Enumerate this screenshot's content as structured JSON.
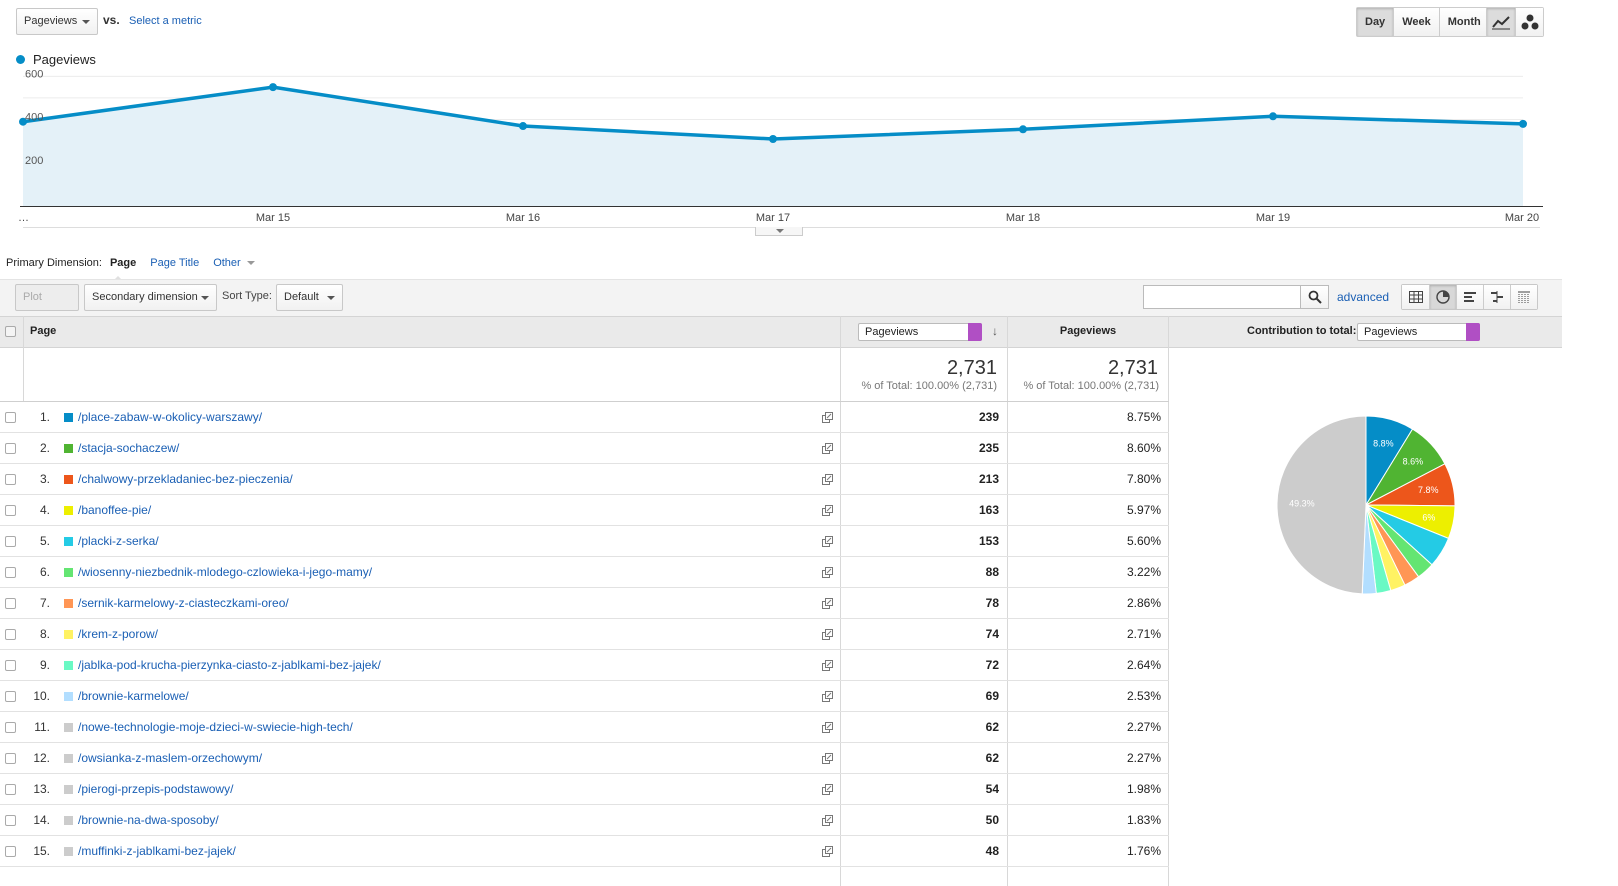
{
  "top": {
    "metric": "Pageviews",
    "vs": "vs.",
    "select_metric": "Select a metric",
    "periods": [
      "Day",
      "Week",
      "Month"
    ],
    "active_period": "Day"
  },
  "chart_data": {
    "type": "area",
    "legend": "Pageviews",
    "color": "#058dc7",
    "fill": "#e4f1f8",
    "x": [
      "…",
      "Mar 15",
      "Mar 16",
      "Mar 17",
      "Mar 18",
      "Mar 19",
      "Mar 20"
    ],
    "series": [
      {
        "name": "Pageviews",
        "values": [
          390,
          550,
          370,
          310,
          355,
          415,
          380
        ]
      }
    ],
    "y_ticks": [
      "600",
      "400",
      "200"
    ],
    "ylim": [
      0,
      620
    ],
    "grid": true
  },
  "dimension": {
    "label": "Primary Dimension:",
    "items": [
      "Page",
      "Page Title",
      "Other"
    ],
    "active": "Page"
  },
  "toolbar": {
    "plot_rows": "Plot Rows",
    "secondary": "Secondary dimension",
    "sort_label": "Sort Type:",
    "sort_value": "Default",
    "advanced": "advanced"
  },
  "table": {
    "col_page": "Page",
    "col_metric_select": "Pageviews",
    "col_pageviews": "Pageviews",
    "col_contrib": "Contribution to total:",
    "col_contrib_select": "Pageviews",
    "total_value": "2,731",
    "total_pct": "% of Total: 100.00% (2,731)",
    "rows": [
      {
        "n": "1.",
        "page": "/place-zabaw-w-okolicy-warszawy/",
        "pv": "239",
        "pct": "8.75%",
        "color": "#058dc7"
      },
      {
        "n": "2.",
        "page": "/stacja-sochaczew/",
        "pv": "235",
        "pct": "8.60%",
        "color": "#50b432"
      },
      {
        "n": "3.",
        "page": "/chalwowy-przekladaniec-bez-pieczenia/",
        "pv": "213",
        "pct": "7.80%",
        "color": "#ed561b"
      },
      {
        "n": "4.",
        "page": "/banoffee-pie/",
        "pv": "163",
        "pct": "5.97%",
        "color": "#edef00"
      },
      {
        "n": "5.",
        "page": "/placki-z-serka/",
        "pv": "153",
        "pct": "5.60%",
        "color": "#24cbe5"
      },
      {
        "n": "6.",
        "page": "/wiosenny-niezbednik-mlodego-czlowieka-i-jego-mamy/",
        "pv": "88",
        "pct": "3.22%",
        "color": "#64e572"
      },
      {
        "n": "7.",
        "page": "/sernik-karmelowy-z-ciasteczkami-oreo/",
        "pv": "78",
        "pct": "2.86%",
        "color": "#ff9655"
      },
      {
        "n": "8.",
        "page": "/krem-z-porow/",
        "pv": "74",
        "pct": "2.71%",
        "color": "#fff263"
      },
      {
        "n": "9.",
        "page": "/jablka-pod-krucha-pierzynka-ciasto-z-jablkami-bez-jajek/",
        "pv": "72",
        "pct": "2.64%",
        "color": "#6af9c4"
      },
      {
        "n": "10.",
        "page": "/brownie-karmelowe/",
        "pv": "69",
        "pct": "2.53%",
        "color": "#b2deff"
      },
      {
        "n": "11.",
        "page": "/nowe-technologie-moje-dzieci-w-swiecie-high-tech/",
        "pv": "62",
        "pct": "2.27%",
        "color": "#cccccc"
      },
      {
        "n": "12.",
        "page": "/owsianka-z-maslem-orzechowym/",
        "pv": "62",
        "pct": "2.27%",
        "color": "#cccccc"
      },
      {
        "n": "13.",
        "page": "/pierogi-przepis-podstawowy/",
        "pv": "54",
        "pct": "1.98%",
        "color": "#cccccc"
      },
      {
        "n": "14.",
        "page": "/brownie-na-dwa-sposoby/",
        "pv": "50",
        "pct": "1.83%",
        "color": "#cccccc"
      },
      {
        "n": "15.",
        "page": "/muffinki-z-jablkami-bez-jajek/",
        "pv": "48",
        "pct": "1.76%",
        "color": "#cccccc"
      }
    ]
  },
  "pie": {
    "slices": [
      {
        "value": 8.75,
        "color": "#058dc7",
        "label": "8.8%"
      },
      {
        "value": 8.6,
        "color": "#50b432",
        "label": "8.6%"
      },
      {
        "value": 7.8,
        "color": "#ed561b",
        "label": "7.8%"
      },
      {
        "value": 5.97,
        "color": "#edef00",
        "label": "6%"
      },
      {
        "value": 5.6,
        "color": "#24cbe5",
        "label": ""
      },
      {
        "value": 3.22,
        "color": "#64e572",
        "label": ""
      },
      {
        "value": 2.86,
        "color": "#ff9655",
        "label": ""
      },
      {
        "value": 2.71,
        "color": "#fff263",
        "label": ""
      },
      {
        "value": 2.64,
        "color": "#6af9c4",
        "label": ""
      },
      {
        "value": 2.53,
        "color": "#b2deff",
        "label": ""
      },
      {
        "value": 49.32,
        "color": "#cccccc",
        "label": "49.3%"
      }
    ]
  }
}
